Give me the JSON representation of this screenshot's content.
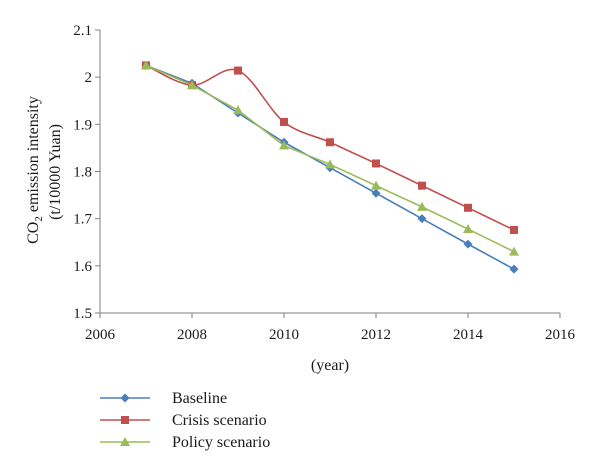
{
  "chart_data": {
    "type": "line",
    "x": [
      2007,
      2008,
      2009,
      2010,
      2011,
      2012,
      2013,
      2014,
      2015
    ],
    "xlabel": "(year)",
    "ylabel": {
      "line1_prefix": "CO",
      "line1_sub": "2",
      "line1_suffix": " emission intensity",
      "line2": "(t/10000 Yuan)"
    },
    "xlim": [
      2006,
      2016
    ],
    "ylim": [
      1.5,
      2.1
    ],
    "xticks": [
      "2006",
      "2008",
      "2010",
      "2012",
      "2014",
      "2016"
    ],
    "yticks": [
      "1.5",
      "1.6",
      "1.7",
      "1.8",
      "1.9",
      "2",
      "2.1"
    ],
    "grid": false,
    "legend": "bottom-left",
    "series": [
      {
        "name": "Baseline",
        "color": "#4a7ebb",
        "marker": "diamond",
        "smooth": false,
        "values": [
          2.025,
          1.987,
          1.924,
          1.862,
          1.808,
          1.754,
          1.7,
          1.646,
          1.593
        ]
      },
      {
        "name": "Crisis scenario",
        "color": "#c0504d",
        "marker": "square",
        "smooth": true,
        "values": [
          2.025,
          1.983,
          2.014,
          1.905,
          1.862,
          1.817,
          1.77,
          1.723,
          1.676
        ]
      },
      {
        "name": "Policy scenario",
        "color": "#9bbb59",
        "marker": "triangle",
        "smooth": false,
        "values": [
          2.025,
          1.983,
          1.93,
          1.855,
          1.815,
          1.77,
          1.725,
          1.678,
          1.63
        ]
      }
    ]
  }
}
